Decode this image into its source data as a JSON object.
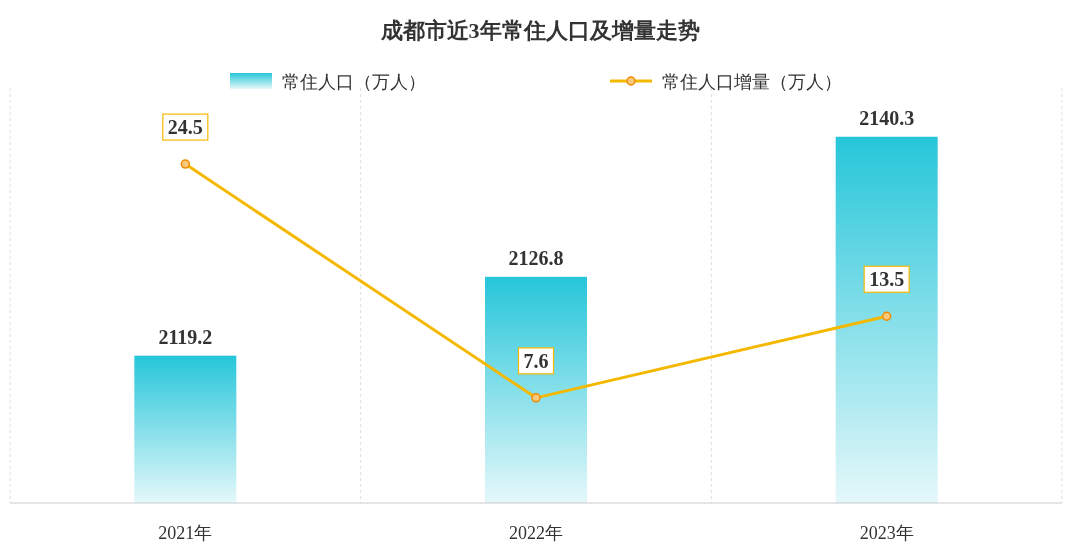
{
  "chart_data": {
    "type": "bar",
    "title": "成都市近3年常住人口及增量走势",
    "categories": [
      "2021年",
      "2022年",
      "2023年"
    ],
    "series": [
      {
        "name": "常住人口（万人）",
        "color": "#26c6d9",
        "values": [
          2119.2,
          2126.8,
          2140.3
        ]
      },
      {
        "name": "常住人口增量（万人）",
        "type": "line",
        "axis": "y2",
        "color": "#f5b800",
        "values": [
          24.5,
          7.6,
          13.5
        ]
      }
    ],
    "ylim": [
      2105,
      2145
    ],
    "y2lim": [
      0,
      30
    ],
    "data_labels": true,
    "legend": "top",
    "grid": "x",
    "marker": "circle",
    "line_style": "solid",
    "tick_labels": "x"
  }
}
